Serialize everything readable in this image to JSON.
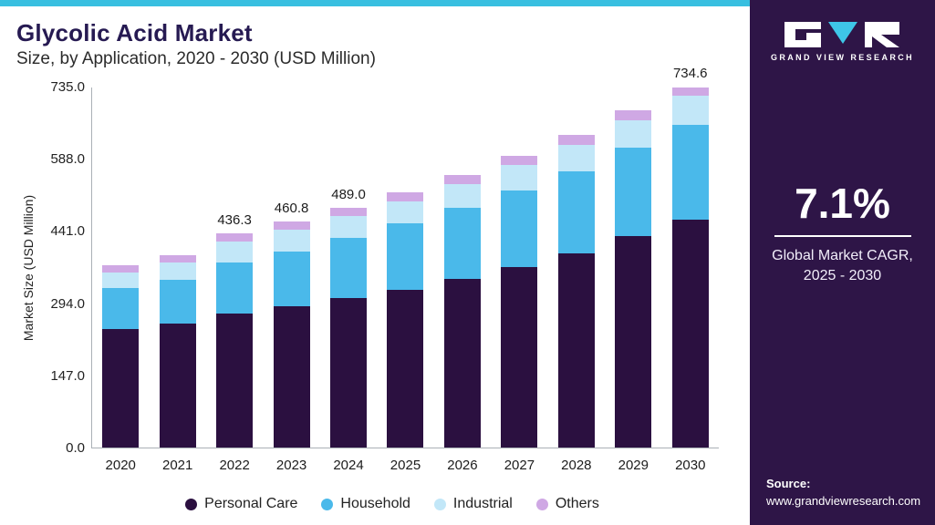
{
  "header": {
    "title": "Glycolic Acid Market",
    "subtitle": "Size, by Application, 2020 - 2030 (USD Million)"
  },
  "sidebar": {
    "logo_text": "GRAND VIEW RESEARCH",
    "cagr_value": "7.1%",
    "cagr_label_line1": "Global Market CAGR,",
    "cagr_label_line2": "2025 - 2030",
    "source_label": "Source:",
    "source_url": "www.grandviewresearch.com",
    "background_color": "#2e1547",
    "accent_color": "#38bfe0"
  },
  "chart_data": {
    "type": "bar",
    "stacked": true,
    "title": "Glycolic Acid Market Size, by Application, 2020 - 2030 (USD Million)",
    "xlabel": "",
    "ylabel": "Market Size (USD Million)",
    "ylim": [
      0,
      735
    ],
    "yticks": [
      0,
      147,
      294,
      441,
      588,
      735
    ],
    "grid": false,
    "legend_position": "bottom",
    "categories": [
      "2020",
      "2021",
      "2022",
      "2023",
      "2024",
      "2025",
      "2026",
      "2027",
      "2028",
      "2029",
      "2030"
    ],
    "series": [
      {
        "name": "Personal Care",
        "color": "#2b1040",
        "values": [
          241,
          252,
          272,
          287,
          304,
          322,
          344,
          368,
          396,
          430,
          464
        ]
      },
      {
        "name": "Household",
        "color": "#4ab9ea",
        "values": [
          84,
          90,
          104,
          113,
          123,
          134,
          144,
          156,
          166,
          180,
          194
        ]
      },
      {
        "name": "Industrial",
        "color": "#c2e7f8",
        "values": [
          32,
          34,
          43,
          43,
          44,
          46,
          48,
          51,
          54,
          57,
          59
        ]
      },
      {
        "name": "Others",
        "color": "#cfa8e4",
        "values": [
          14,
          15,
          17.3,
          17.8,
          18,
          18,
          19,
          19,
          20,
          20,
          17.6
        ]
      }
    ],
    "totals": [
      371,
      391,
      436.3,
      460.8,
      489.0,
      520,
      555,
      594,
      636,
      687,
      734.6
    ],
    "total_labels": [
      "",
      "",
      "436.3",
      "460.8",
      "489.0",
      "",
      "",
      "",
      "",
      "",
      "734.6"
    ]
  }
}
